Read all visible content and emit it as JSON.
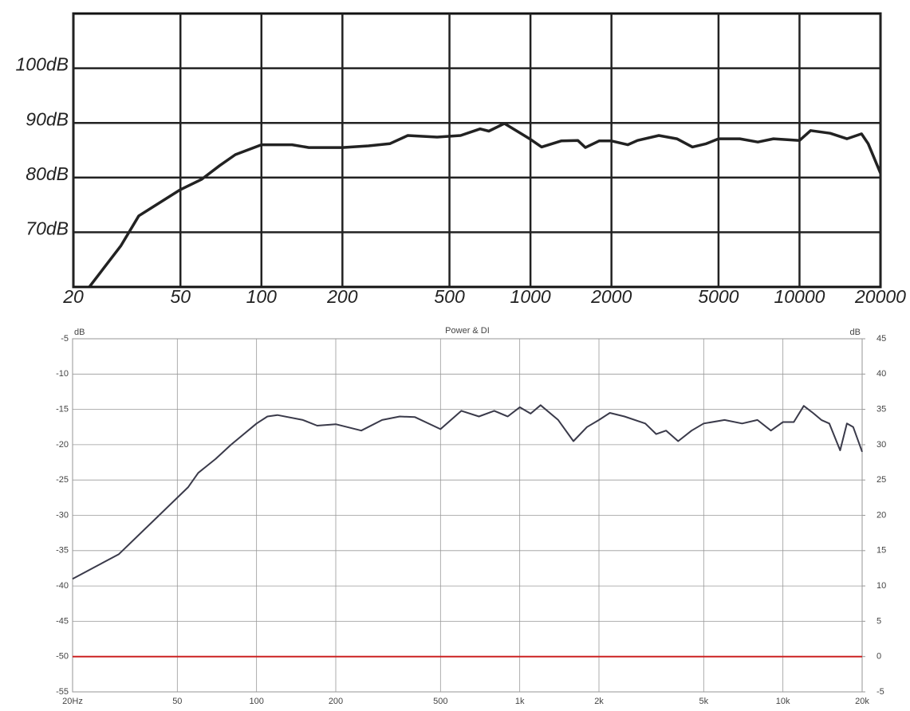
{
  "chart_data": [
    {
      "type": "line",
      "log_x": true,
      "xlim": [
        20,
        20000
      ],
      "xticks": [
        20,
        50,
        100,
        200,
        500,
        1000,
        2000,
        5000,
        10000,
        20000
      ],
      "ylim": [
        60,
        110
      ],
      "yticks": [
        {
          "value": 70,
          "label": "70dB"
        },
        {
          "value": 80,
          "label": "80dB"
        },
        {
          "value": 90,
          "label": "90dB"
        },
        {
          "value": 100,
          "label": "100dB"
        }
      ],
      "grid": true,
      "series": [
        {
          "color": "#222222",
          "x": [
            23,
            30,
            35,
            40,
            50,
            60,
            70,
            80,
            100,
            130,
            150,
            200,
            250,
            300,
            350,
            450,
            550,
            650,
            700,
            800,
            1000,
            1100,
            1300,
            1500,
            1600,
            1800,
            2000,
            2300,
            2500,
            3000,
            3500,
            4000,
            4500,
            5000,
            6000,
            7000,
            8000,
            10000,
            11000,
            13000,
            15000,
            17000,
            18000,
            20000
          ],
          "values": [
            60.1,
            67.5,
            73,
            74.8,
            77.8,
            79.7,
            82.2,
            84.2,
            86,
            86,
            85.5,
            85.5,
            85.8,
            86.2,
            87.7,
            87.4,
            87.7,
            88.9,
            88.5,
            89.9,
            87,
            85.6,
            86.7,
            86.8,
            85.5,
            86.7,
            86.7,
            86,
            86.8,
            87.7,
            87.1,
            85.6,
            86.2,
            87.1,
            87.1,
            86.5,
            87.1,
            86.8,
            88.6,
            88.1,
            87.1,
            88,
            86.2,
            80.8
          ]
        }
      ]
    },
    {
      "type": "line",
      "log_x": true,
      "title": "Power & DI",
      "ylabel": "dB",
      "y2label": "dB",
      "xlim": [
        20,
        20000
      ],
      "xticks": [
        {
          "value": 20,
          "label": "20Hz"
        },
        50,
        100,
        200,
        500,
        {
          "value": 1000,
          "label": "1k"
        },
        {
          "value": 2000,
          "label": "2k"
        },
        {
          "value": 5000,
          "label": "5k"
        },
        {
          "value": 10000,
          "label": "10k"
        },
        {
          "value": 20000,
          "label": "20k"
        }
      ],
      "ylim": [
        -55,
        -5
      ],
      "yticks": [
        -55,
        -50,
        -45,
        -40,
        -35,
        -30,
        -25,
        -20,
        -15,
        -10,
        -5
      ],
      "y2lim": [
        -5,
        45
      ],
      "y2ticks": [
        -5,
        0,
        5,
        10,
        15,
        20,
        25,
        30,
        35,
        40,
        45
      ],
      "grid": true,
      "series": [
        {
          "color": "#3a3a4a",
          "x": [
            20,
            30,
            40,
            50,
            55,
            60,
            70,
            80,
            100,
            110,
            120,
            150,
            170,
            200,
            250,
            300,
            350,
            400,
            500,
            600,
            700,
            800,
            900,
            1000,
            1100,
            1200,
            1400,
            1600,
            1800,
            2000,
            2200,
            2500,
            3000,
            3300,
            3600,
            4000,
            4500,
            5000,
            6000,
            7000,
            8000,
            9000,
            10000,
            11000,
            12000,
            13000,
            14000,
            15000,
            16500,
            17500,
            18500,
            20000
          ],
          "values": [
            -39,
            -35.5,
            -31,
            -27.5,
            -26,
            -24,
            -22,
            -20,
            -17,
            -16,
            -15.8,
            -16.5,
            -17.3,
            -17.1,
            -18,
            -16.5,
            -16,
            -16.1,
            -17.8,
            -15.2,
            -16,
            -15.2,
            -16,
            -14.7,
            -15.6,
            -14.4,
            -16.5,
            -19.5,
            -17.5,
            -16.5,
            -15.5,
            -16,
            -17,
            -18.5,
            -18,
            -19.5,
            -18,
            -17,
            -16.5,
            -17,
            -16.5,
            -18,
            -16.8,
            -16.8,
            -14.5,
            -15.5,
            -16.5,
            -17,
            -20.8,
            -17,
            -17.5,
            -21
          ]
        },
        {
          "color": "#cc2222",
          "axis": "y2",
          "x": [
            20,
            20000
          ],
          "values": [
            0,
            0
          ]
        }
      ]
    }
  ]
}
